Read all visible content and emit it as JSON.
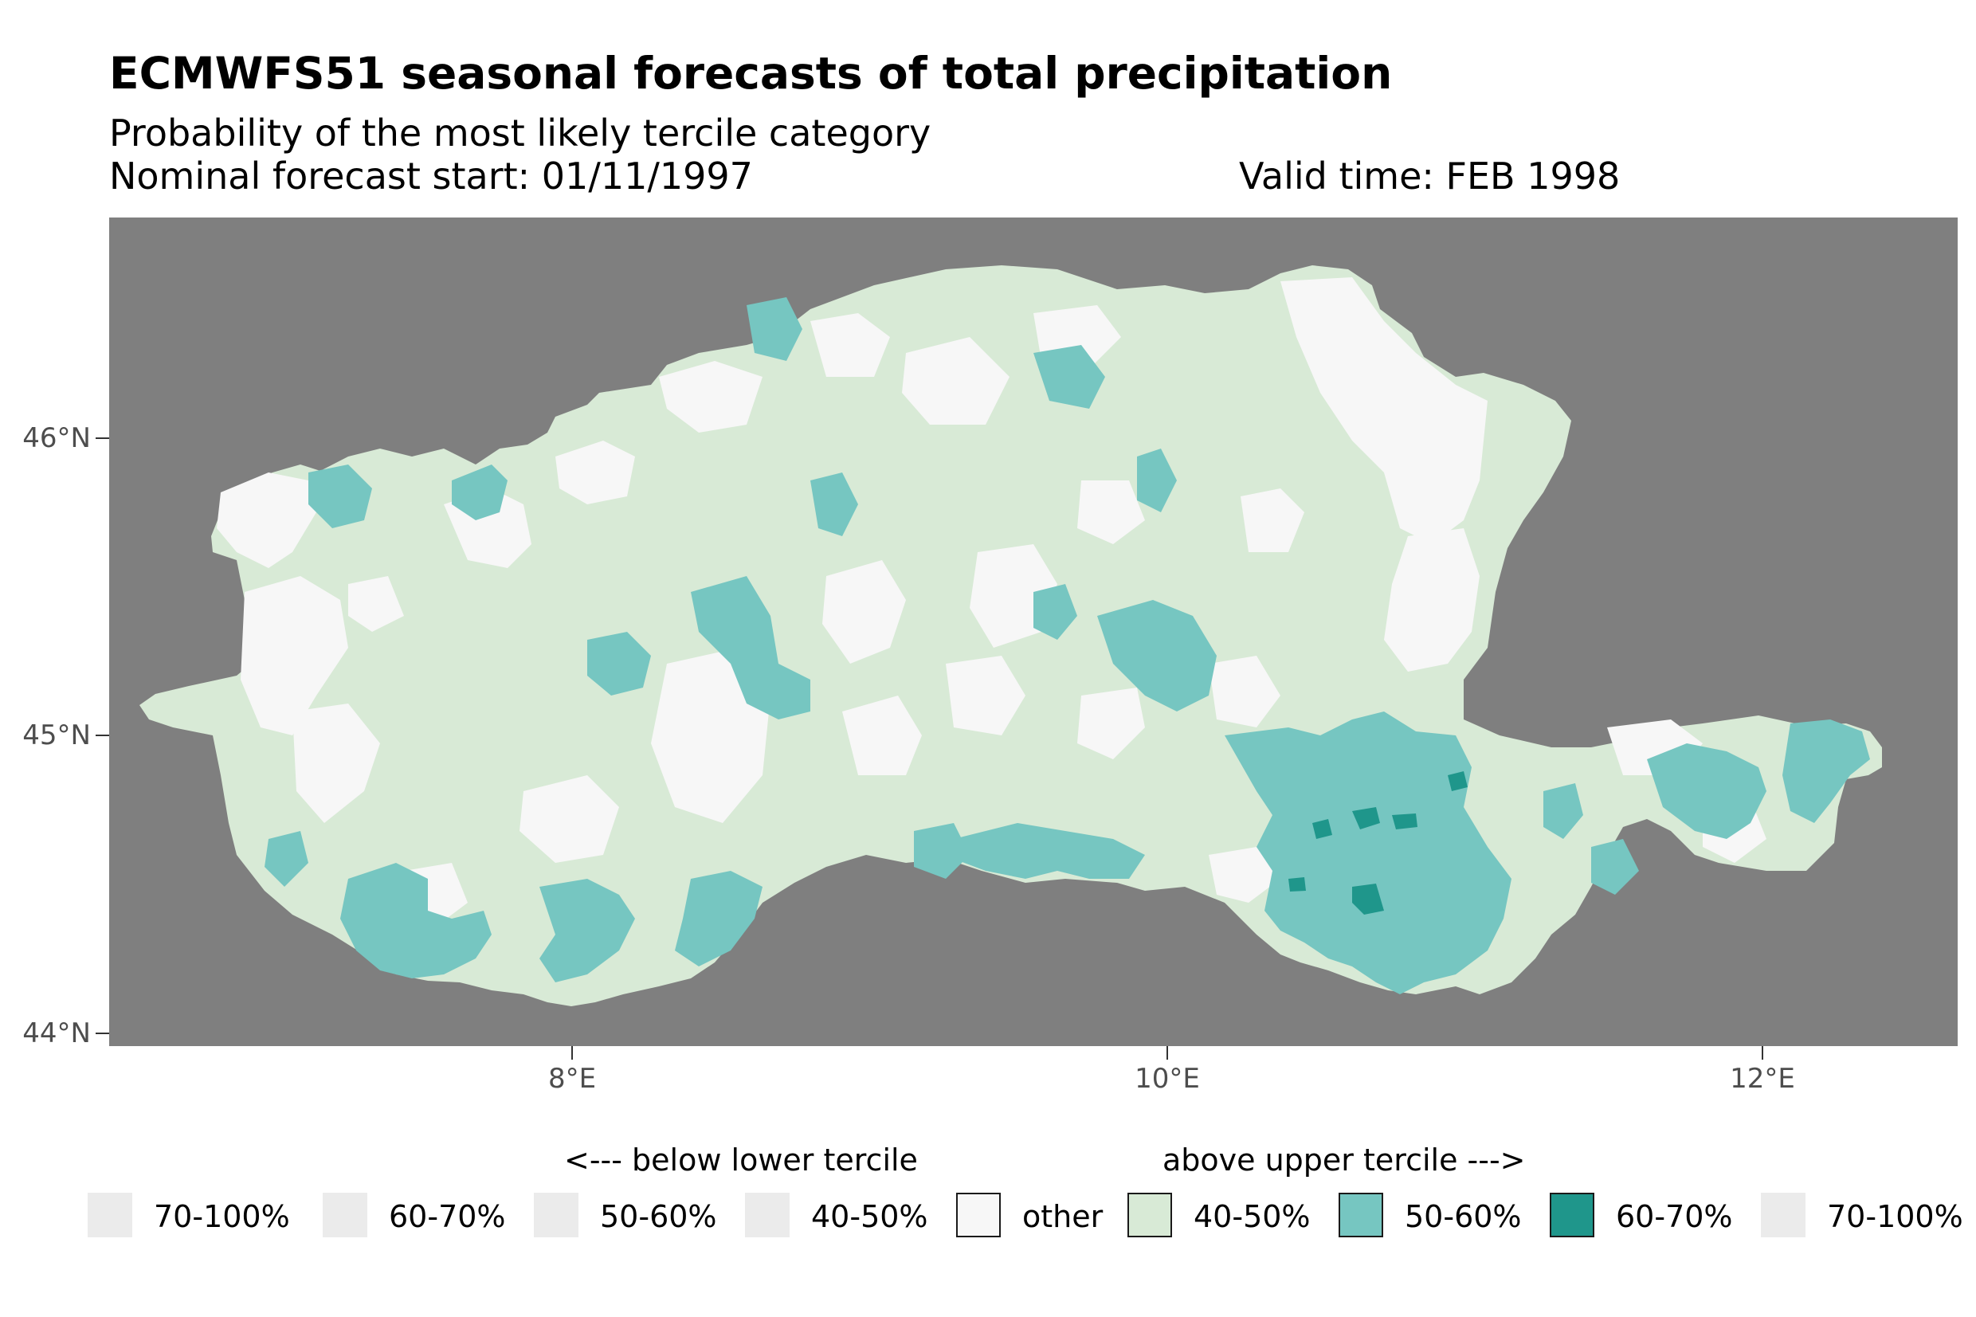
{
  "header": {
    "title": "ECMWFS51 seasonal forecasts of total precipitation",
    "subtitle": "Probability of the most likely tercile category",
    "forecast_start": "Nominal forecast start: 01/11/1997",
    "valid_time": "Valid time: FEB 1998"
  },
  "axes": {
    "y_ticks": [
      {
        "value": 46,
        "label": "46°N"
      },
      {
        "value": 45,
        "label": "45°N"
      },
      {
        "value": 44,
        "label": "44°N"
      }
    ],
    "x_ticks": [
      {
        "value": 8,
        "label": "8°E"
      },
      {
        "value": 10,
        "label": "10°E"
      },
      {
        "value": 12,
        "label": "12°E"
      }
    ],
    "lat_range": [
      43.96,
      46.74
    ],
    "lon_range": [
      6.45,
      12.65
    ]
  },
  "map": {
    "background_color": "#7f7f7f",
    "region": "Po river basin (northern Italy)",
    "colors": {
      "other": "#f7f7f7",
      "above_40_50": "#d8ead6",
      "above_50_60": "#76c6c1",
      "above_60_70": "#1f968b",
      "below_unused": "#ebebeb"
    }
  },
  "legend": {
    "below_label": "<--- below lower tercile",
    "above_label": "above upper tercile --->",
    "items": [
      {
        "label": "70-100%",
        "color": "#ebebeb",
        "bordered": false
      },
      {
        "label": "60-70%",
        "color": "#ebebeb",
        "bordered": false
      },
      {
        "label": "50-60%",
        "color": "#ebebeb",
        "bordered": false
      },
      {
        "label": "40-50%",
        "color": "#ebebeb",
        "bordered": false
      },
      {
        "label": "other",
        "color": "#f7f7f7",
        "bordered": true
      },
      {
        "label": "40-50%",
        "color": "#d8ead6",
        "bordered": true
      },
      {
        "label": "50-60%",
        "color": "#76c6c1",
        "bordered": true
      },
      {
        "label": "60-70%",
        "color": "#1f968b",
        "bordered": true
      },
      {
        "label": "70-100%",
        "color": "#ebebeb",
        "bordered": false
      }
    ]
  }
}
